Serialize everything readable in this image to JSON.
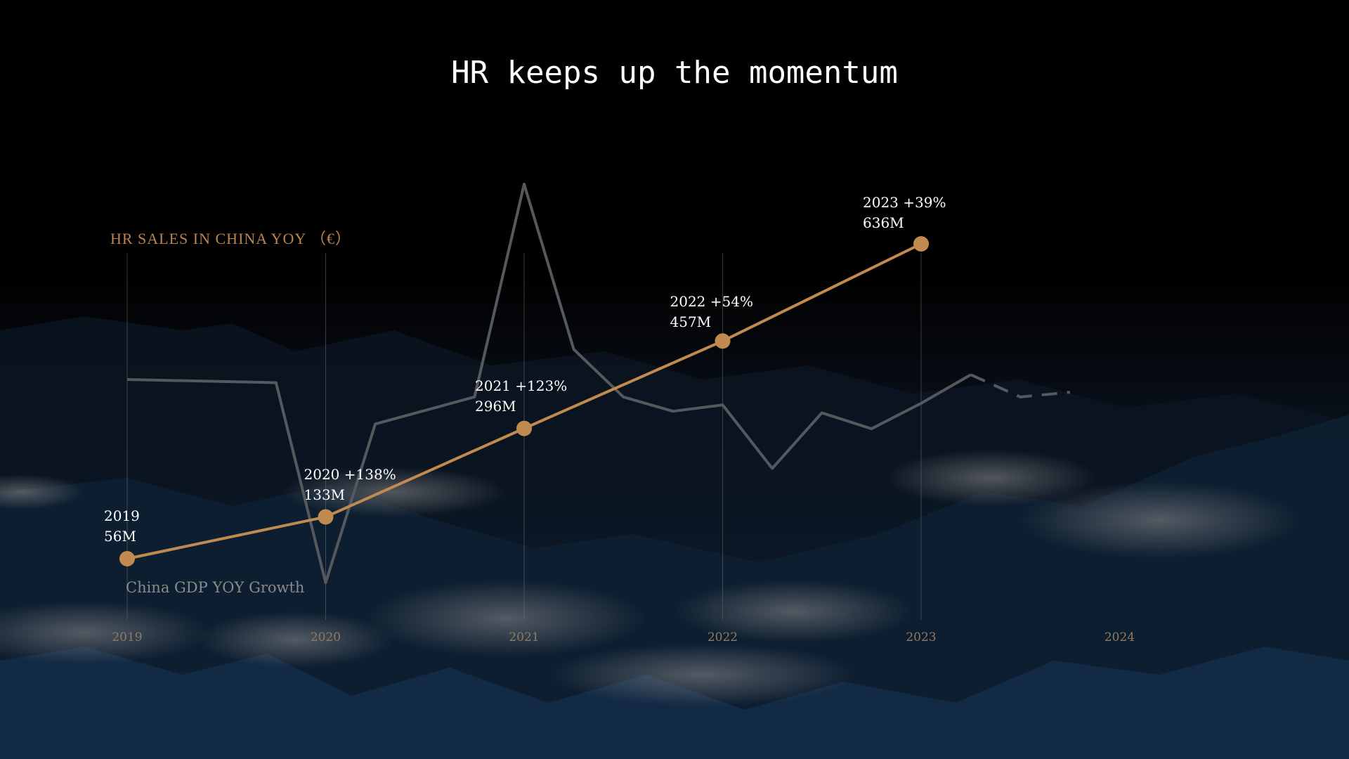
{
  "title": "HR keeps up the momentum",
  "chart_data": {
    "type": "line",
    "title": "HR keeps up the momentum",
    "series_label": "HR SALES IN CHINA YOY （€）",
    "secondary_label": "China GDP YOY Growth",
    "x_ticks": [
      "2019",
      "2020",
      "2021",
      "2022",
      "2023",
      "2024"
    ],
    "series": [
      {
        "name": "HR SALES IN CHINA YOY （€）",
        "x": [
          "2019",
          "2020",
          "2021",
          "2022",
          "2023"
        ],
        "values": [
          56,
          133,
          296,
          457,
          636
        ],
        "labels": [
          {
            "year": "2019",
            "growth": "",
            "value": "56M"
          },
          {
            "year": "2020",
            "growth": "+138%",
            "value": "133M"
          },
          {
            "year": "2021",
            "growth": "+123%",
            "value": "296M"
          },
          {
            "year": "2022",
            "growth": "+54%",
            "value": "457M"
          },
          {
            "year": "2023",
            "growth": "+39%",
            "value": "636M"
          }
        ],
        "color": "#c18a4f"
      },
      {
        "name": "China GDP YOY Growth",
        "x": [
          2019.0,
          2019.75,
          2020.0,
          2020.25,
          2020.75,
          2021.0,
          2021.25,
          2021.5,
          2021.75,
          2022.0,
          2022.25,
          2022.5,
          2022.75,
          2023.0,
          2023.25,
          2023.5,
          2023.75
        ],
        "values": [
          6.0,
          5.8,
          -6.8,
          3.2,
          4.9,
          18.3,
          7.9,
          4.9,
          4.0,
          4.4,
          0.4,
          3.9,
          2.9,
          4.5,
          6.3,
          4.9,
          5.2
        ],
        "projected_from": 2023.25,
        "color": "#55585c"
      }
    ],
    "grid": false,
    "legend": "none"
  },
  "colors": {
    "accent": "#c18a4f",
    "gdp": "#55585c",
    "background": "#000000"
  }
}
